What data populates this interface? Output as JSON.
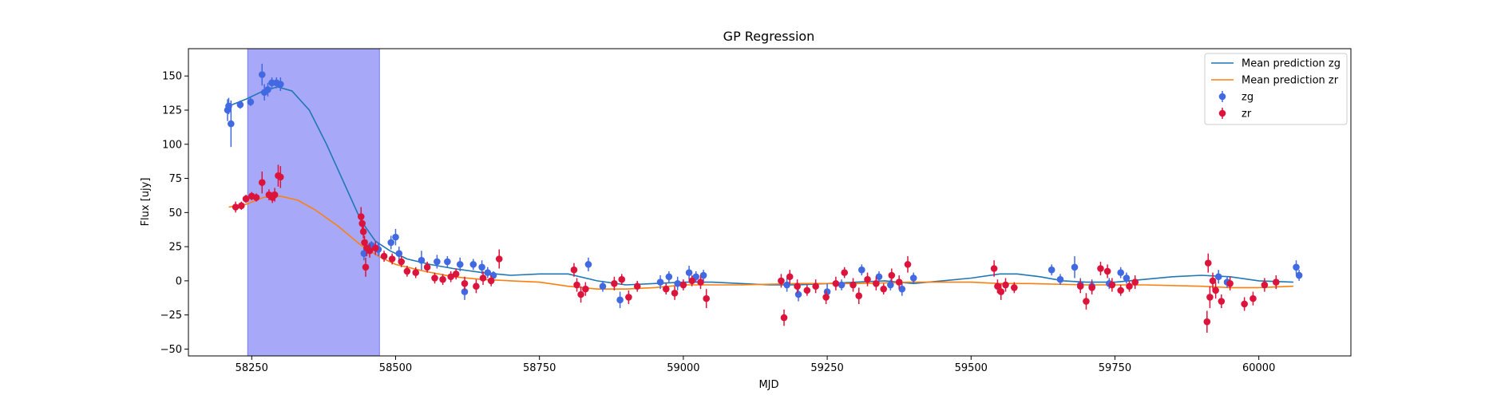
{
  "chart_data": {
    "type": "scatter",
    "title": "GP Regression",
    "xlabel": "MJD",
    "ylabel": "Flux [ujy]",
    "xlim": [
      58140,
      60160
    ],
    "ylim": [
      -55,
      170
    ],
    "xticks": [
      58250,
      58500,
      58750,
      59000,
      59250,
      59500,
      59750,
      60000
    ],
    "yticks": [
      -50,
      -25,
      0,
      25,
      50,
      75,
      100,
      125,
      150
    ],
    "grid": false,
    "legend_position": "top-right",
    "shaded_region": {
      "x_start": 58243,
      "x_end": 58472,
      "color": "#a8a8f8"
    },
    "series": [
      {
        "name": "Mean prediction zg",
        "kind": "line",
        "color": "#1f77b4",
        "x": [
          58210,
          58240,
          58270,
          58295,
          58320,
          58350,
          58380,
          58410,
          58440,
          58465,
          58490,
          58520,
          58560,
          58600,
          58650,
          58700,
          58750,
          58800,
          58850,
          58900,
          58950,
          59000,
          59050,
          59100,
          59150,
          59200,
          59250,
          59300,
          59350,
          59400,
          59450,
          59500,
          59550,
          59580,
          59620,
          59660,
          59700,
          59750,
          59800,
          59850,
          59900,
          59950,
          60000,
          60060
        ],
        "y": [
          128,
          133,
          139,
          142,
          139,
          125,
          100,
          72,
          44,
          29,
          22,
          16,
          12,
          9,
          6,
          4,
          5,
          5,
          0,
          -3,
          -2,
          -1,
          -1,
          -2,
          -3,
          -3,
          -2,
          -1,
          0,
          -2,
          0,
          2,
          5,
          5,
          3,
          0,
          -1,
          -1,
          1,
          3,
          4,
          3,
          0,
          -1
        ]
      },
      {
        "name": "Mean prediction zr",
        "kind": "line",
        "color": "#ff7f0e",
        "x": [
          58210,
          58240,
          58270,
          58300,
          58330,
          58360,
          58400,
          58440,
          58470,
          58500,
          58550,
          58600,
          58650,
          58700,
          58750,
          58800,
          58850,
          58900,
          58950,
          59000,
          59100,
          59200,
          59300,
          59400,
          59500,
          59550,
          59600,
          59700,
          59800,
          59900,
          59950,
          60000,
          60060
        ],
        "y": [
          54,
          56,
          61,
          62,
          59,
          52,
          40,
          26,
          18,
          12,
          7,
          3,
          1,
          0,
          -1,
          -4,
          -6,
          -6,
          -5,
          -3,
          -3,
          -2,
          -2,
          -1,
          -1,
          -2,
          -2,
          -3,
          -3,
          -4,
          -5,
          -5,
          -4
        ]
      },
      {
        "name": "zg",
        "kind": "errorbar",
        "color": "#4169e1",
        "points": [
          [
            58208,
            125,
            8
          ],
          [
            58210,
            128,
            6
          ],
          [
            58214,
            115,
            17
          ],
          [
            58230,
            129,
            3
          ],
          [
            58248,
            131,
            3
          ],
          [
            58268,
            151,
            8
          ],
          [
            58272,
            138,
            6
          ],
          [
            58278,
            140,
            5
          ],
          [
            58285,
            145,
            4
          ],
          [
            58293,
            145,
            4
          ],
          [
            58300,
            144,
            5
          ],
          [
            58445,
            20,
            5
          ],
          [
            58458,
            26,
            3
          ],
          [
            58470,
            23,
            5
          ],
          [
            58492,
            28,
            5
          ],
          [
            58500,
            32,
            6
          ],
          [
            58506,
            20,
            5
          ],
          [
            58545,
            15,
            7
          ],
          [
            58572,
            14,
            5
          ],
          [
            58590,
            14,
            4
          ],
          [
            58612,
            12,
            5
          ],
          [
            58620,
            -8,
            6
          ],
          [
            58635,
            12,
            4
          ],
          [
            58650,
            10,
            5
          ],
          [
            58660,
            6,
            4
          ],
          [
            58670,
            4,
            3
          ],
          [
            58835,
            12,
            5
          ],
          [
            58860,
            -4,
            4
          ],
          [
            58890,
            -14,
            6
          ],
          [
            58960,
            -1,
            5
          ],
          [
            58975,
            3,
            4
          ],
          [
            58990,
            -2,
            5
          ],
          [
            59010,
            6,
            5
          ],
          [
            59022,
            3,
            4
          ],
          [
            59035,
            4,
            4
          ],
          [
            59180,
            -3,
            5
          ],
          [
            59200,
            -10,
            5
          ],
          [
            59250,
            -8,
            6
          ],
          [
            59275,
            -3,
            4
          ],
          [
            59310,
            8,
            4
          ],
          [
            59340,
            3,
            4
          ],
          [
            59360,
            -3,
            4
          ],
          [
            59380,
            -6,
            5
          ],
          [
            59400,
            2,
            4
          ],
          [
            59640,
            8,
            4
          ],
          [
            59655,
            1,
            4
          ],
          [
            59680,
            10,
            8
          ],
          [
            59690,
            -3,
            5
          ],
          [
            59710,
            -4,
            5
          ],
          [
            59740,
            -2,
            4
          ],
          [
            59760,
            6,
            4
          ],
          [
            59770,
            2,
            4
          ],
          [
            59930,
            3,
            5
          ],
          [
            59945,
            -1,
            4
          ],
          [
            60065,
            10,
            5
          ],
          [
            60070,
            4,
            4
          ]
        ]
      },
      {
        "name": "zr",
        "kind": "errorbar",
        "color": "#dc143c",
        "points": [
          [
            58222,
            54,
            4
          ],
          [
            58232,
            55,
            3
          ],
          [
            58240,
            60,
            3
          ],
          [
            58250,
            62,
            3
          ],
          [
            58258,
            61,
            3
          ],
          [
            58268,
            72,
            8
          ],
          [
            58280,
            63,
            4
          ],
          [
            58286,
            61,
            4
          ],
          [
            58290,
            63,
            5
          ],
          [
            58296,
            77,
            8
          ],
          [
            58300,
            76,
            8
          ],
          [
            58440,
            47,
            7
          ],
          [
            58442,
            42,
            6
          ],
          [
            58444,
            36,
            5
          ],
          [
            58446,
            28,
            5
          ],
          [
            58448,
            10,
            7
          ],
          [
            58450,
            24,
            6
          ],
          [
            58455,
            22,
            5
          ],
          [
            58465,
            24,
            5
          ],
          [
            58480,
            18,
            4
          ],
          [
            58494,
            16,
            4
          ],
          [
            58510,
            14,
            4
          ],
          [
            58520,
            7,
            4
          ],
          [
            58535,
            6,
            4
          ],
          [
            58555,
            10,
            4
          ],
          [
            58568,
            2,
            4
          ],
          [
            58582,
            1,
            4
          ],
          [
            58596,
            3,
            4
          ],
          [
            58605,
            5,
            4
          ],
          [
            58620,
            -2,
            5
          ],
          [
            58640,
            -4,
            5
          ],
          [
            58652,
            2,
            5
          ],
          [
            58666,
            0,
            4
          ],
          [
            58680,
            16,
            7
          ],
          [
            58810,
            8,
            5
          ],
          [
            58815,
            -3,
            5
          ],
          [
            58822,
            -10,
            6
          ],
          [
            58830,
            -6,
            5
          ],
          [
            58880,
            -2,
            5
          ],
          [
            58893,
            1,
            4
          ],
          [
            58905,
            -12,
            5
          ],
          [
            58920,
            -4,
            4
          ],
          [
            58970,
            -6,
            4
          ],
          [
            58985,
            -9,
            5
          ],
          [
            59000,
            -3,
            4
          ],
          [
            59015,
            0,
            4
          ],
          [
            59030,
            -1,
            5
          ],
          [
            59040,
            -13,
            7
          ],
          [
            59170,
            0,
            5
          ],
          [
            59175,
            -27,
            6
          ],
          [
            59185,
            3,
            5
          ],
          [
            59198,
            -4,
            5
          ],
          [
            59215,
            -7,
            4
          ],
          [
            59230,
            -4,
            5
          ],
          [
            59248,
            -12,
            5
          ],
          [
            59265,
            -2,
            5
          ],
          [
            59280,
            6,
            4
          ],
          [
            59295,
            -3,
            5
          ],
          [
            59305,
            -11,
            6
          ],
          [
            59320,
            1,
            5
          ],
          [
            59335,
            -2,
            5
          ],
          [
            59348,
            -6,
            4
          ],
          [
            59362,
            4,
            5
          ],
          [
            59375,
            -1,
            5
          ],
          [
            59390,
            12,
            6
          ],
          [
            59540,
            9,
            6
          ],
          [
            59546,
            -4,
            5
          ],
          [
            59552,
            -8,
            6
          ],
          [
            59560,
            -3,
            5
          ],
          [
            59575,
            -5,
            4
          ],
          [
            59690,
            -4,
            5
          ],
          [
            59700,
            -15,
            6
          ],
          [
            59710,
            -5,
            5
          ],
          [
            59725,
            9,
            5
          ],
          [
            59737,
            7,
            5
          ],
          [
            59745,
            -3,
            5
          ],
          [
            59760,
            -7,
            4
          ],
          [
            59775,
            -4,
            4
          ],
          [
            59785,
            -1,
            5
          ],
          [
            59910,
            -30,
            8
          ],
          [
            59912,
            13,
            7
          ],
          [
            59915,
            -12,
            8
          ],
          [
            59920,
            0,
            6
          ],
          [
            59925,
            -7,
            6
          ],
          [
            59935,
            -15,
            5
          ],
          [
            59950,
            -2,
            5
          ],
          [
            59975,
            -17,
            5
          ],
          [
            59990,
            -13,
            5
          ],
          [
            60010,
            -3,
            5
          ],
          [
            60030,
            -1,
            5
          ]
        ]
      }
    ]
  }
}
